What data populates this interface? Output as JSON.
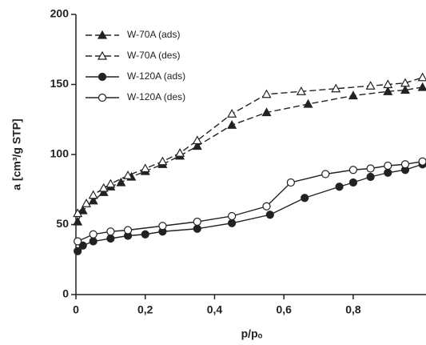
{
  "chart_data": {
    "type": "line",
    "x_label": "p/pₒ",
    "y_label": "a [cm³/g STP]",
    "xlim": [
      0,
      1.01
    ],
    "ylim": [
      0,
      200
    ],
    "xticks": [
      {
        "value": 0,
        "label": "0"
      },
      {
        "value": 0.2,
        "label": "0,2"
      },
      {
        "value": 0.4,
        "label": "0,4"
      },
      {
        "value": 0.6,
        "label": "0,6"
      },
      {
        "value": 0.8,
        "label": "0,8"
      }
    ],
    "yticks": [
      0,
      50,
      100,
      150,
      200
    ],
    "legend": "top-left",
    "series": [
      {
        "name": "W-70A (ads)",
        "color": "#222222",
        "line_style": "dashed",
        "marker": "triangle",
        "marker_fill": "filled",
        "x": [
          0.005,
          0.02,
          0.05,
          0.08,
          0.1,
          0.13,
          0.16,
          0.2,
          0.25,
          0.3,
          0.35,
          0.45,
          0.55,
          0.67,
          0.8,
          0.9,
          0.95,
          1.0
        ],
        "values": [
          52,
          60,
          67,
          73,
          77,
          80,
          84,
          88,
          93,
          99,
          106,
          121,
          130,
          136,
          142,
          145,
          146,
          148
        ]
      },
      {
        "name": "W-70A (des)",
        "color": "#222222",
        "line_style": "dashed",
        "marker": "triangle",
        "marker_fill": "open",
        "x": [
          0.005,
          0.03,
          0.05,
          0.08,
          0.1,
          0.15,
          0.2,
          0.25,
          0.3,
          0.35,
          0.45,
          0.55,
          0.65,
          0.75,
          0.85,
          0.9,
          0.95,
          1.0
        ],
        "values": [
          58,
          65,
          71,
          76,
          79,
          85,
          90,
          95,
          101,
          110,
          129,
          143,
          145,
          147,
          149,
          150,
          151,
          155
        ]
      },
      {
        "name": "W-120A (ads)",
        "color": "#222222",
        "line_style": "solid",
        "marker": "circle",
        "marker_fill": "filled",
        "x": [
          0.005,
          0.02,
          0.05,
          0.1,
          0.15,
          0.2,
          0.25,
          0.35,
          0.45,
          0.56,
          0.66,
          0.76,
          0.8,
          0.85,
          0.9,
          0.95,
          1.0
        ],
        "values": [
          31,
          35,
          38,
          40,
          42,
          43,
          45,
          47,
          51,
          57,
          69,
          77,
          80,
          84,
          87,
          89,
          93
        ]
      },
      {
        "name": "W-120A (des)",
        "color": "#222222",
        "line_style": "solid",
        "marker": "circle",
        "marker_fill": "open",
        "x": [
          0.005,
          0.05,
          0.1,
          0.15,
          0.25,
          0.35,
          0.45,
          0.55,
          0.62,
          0.72,
          0.8,
          0.85,
          0.9,
          0.95,
          1.0
        ],
        "values": [
          38,
          43,
          45,
          46,
          49,
          52,
          56,
          63,
          80,
          86,
          89,
          90,
          92,
          93,
          95
        ]
      }
    ]
  }
}
